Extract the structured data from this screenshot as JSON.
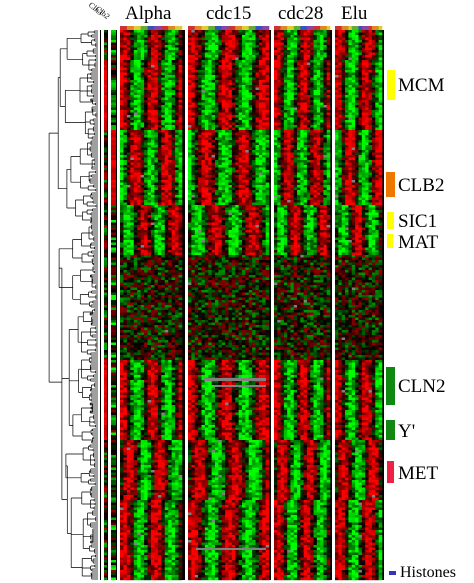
{
  "columns": [
    {
      "label": "Alpha",
      "count": 18
    },
    {
      "label": "cdc15",
      "count": 24
    },
    {
      "label": "cdc28",
      "count": 17
    },
    {
      "label": "Elu",
      "count": 14
    }
  ],
  "side_columns": [
    {
      "label": "Cln3",
      "color": "#ff0000"
    },
    {
      "label": "Clb2",
      "color": "#00ff00"
    }
  ],
  "clusters": [
    {
      "label": "MCM",
      "color": "#ffff00"
    },
    {
      "label": "CLB2",
      "color": "#ee7700"
    },
    {
      "label": "SIC1",
      "color": "#ffff00"
    },
    {
      "label": "MAT",
      "color": "#ffff00"
    },
    {
      "label": "CLN2",
      "color": "#118811"
    },
    {
      "label": "Y'",
      "color": "#118811"
    },
    {
      "label": "MET",
      "color": "#ee2244"
    },
    {
      "label": "Histones",
      "color": "#3333bb"
    }
  ],
  "colors": {
    "induced": "#ff0000",
    "repressed": "#00ff00",
    "neutral": "#000000",
    "missing": "#808080",
    "separator": "#ffffff",
    "header_strip": [
      "#cc3333",
      "#dd8822",
      "#ddcc33",
      "#66aa33",
      "#3355bb",
      "#8844aa"
    ]
  }
}
